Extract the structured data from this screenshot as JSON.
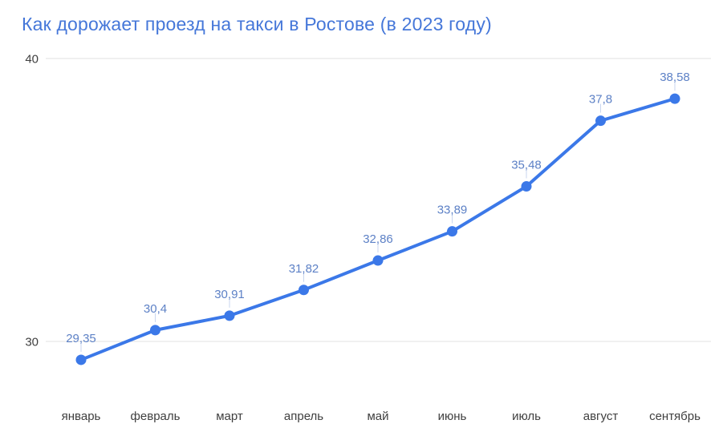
{
  "chart_data": {
    "type": "line",
    "title": "Как дорожает проезд на такси в Ростове (в 2023 году)",
    "categories": [
      "январь",
      "февраль",
      "март",
      "апрель",
      "май",
      "июнь",
      "июль",
      "август",
      "сентябрь"
    ],
    "values": [
      29.35,
      30.4,
      30.91,
      31.82,
      32.86,
      33.89,
      35.48,
      37.8,
      38.58
    ],
    "point_labels": [
      "29,35",
      "30,4",
      "30,91",
      "31,82",
      "32,86",
      "33,89",
      "35,48",
      "37,8",
      "38,58"
    ],
    "xlabel": "",
    "ylabel": "",
    "y_ticks": [
      30,
      40
    ],
    "y_tick_labels": [
      "30",
      "40"
    ],
    "ylim": [
      28,
      40.5
    ],
    "grid": true,
    "legend": "none",
    "colors": {
      "line": "#3b78e8",
      "point": "#3b78e8",
      "point_label": "#5d81c6",
      "label_stem": "#c9d6ef",
      "title": "#4577d9",
      "gridline": "#e2e2e2",
      "axis_text": "#3f3f3f"
    }
  }
}
